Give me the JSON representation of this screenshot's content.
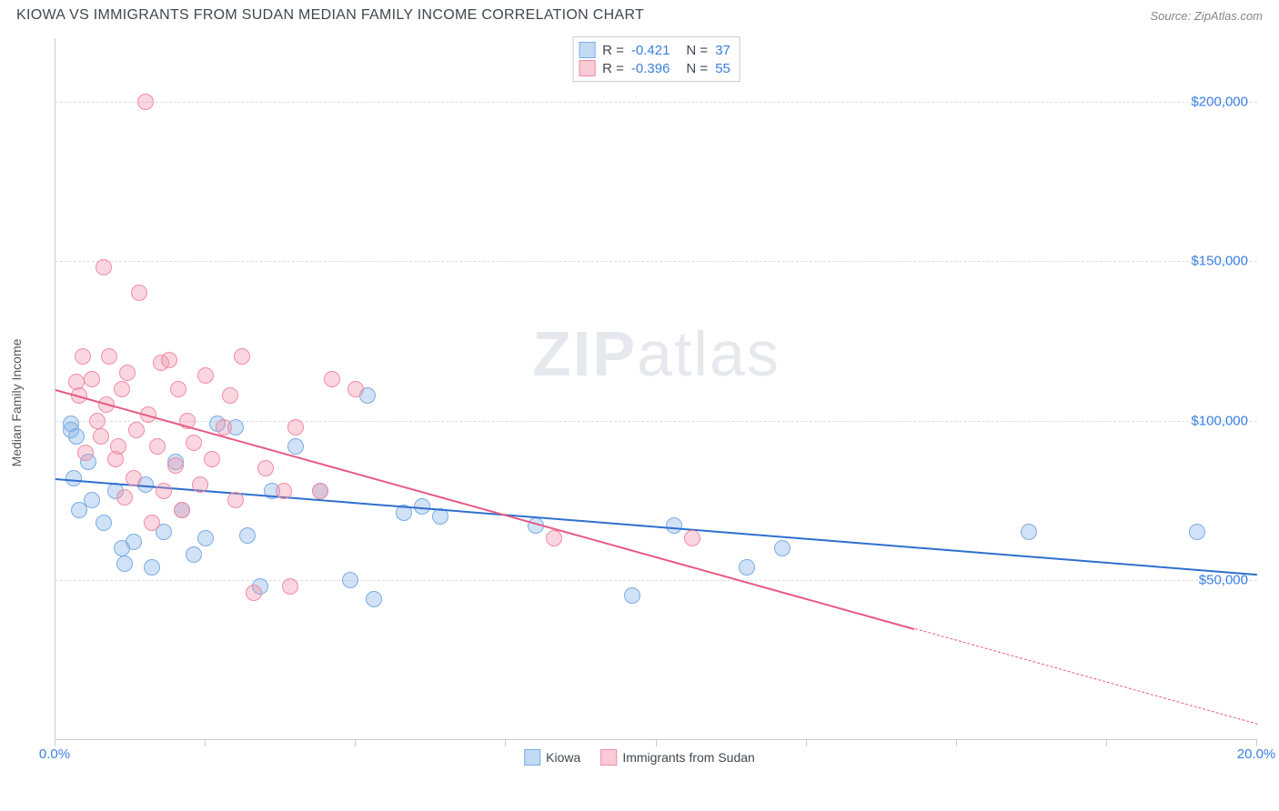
{
  "header": {
    "title": "KIOWA VS IMMIGRANTS FROM SUDAN MEDIAN FAMILY INCOME CORRELATION CHART",
    "source": "Source: ZipAtlas.com"
  },
  "chart": {
    "type": "scatter",
    "ylabel": "Median Family Income",
    "watermark_a": "ZIP",
    "watermark_b": "atlas",
    "xlim": [
      0,
      20
    ],
    "ylim": [
      0,
      220000
    ],
    "x_tick_positions": [
      0,
      2.5,
      5,
      7.5,
      10,
      12.5,
      15,
      17.5,
      20
    ],
    "x_tick_labels": {
      "0": "0.0%",
      "20": "20.0%"
    },
    "y_gridlines": [
      50000,
      100000,
      150000,
      200000
    ],
    "y_tick_labels": {
      "50000": "$50,000",
      "100000": "$100,000",
      "150000": "$150,000",
      "200000": "$200,000"
    },
    "background_color": "#ffffff",
    "grid_color": "#d9dde1",
    "axis_color": "#c9ced3",
    "tick_label_color": "#3a7fe0",
    "marker_radius": 9,
    "series": [
      {
        "name": "Kiowa",
        "fill": "rgba(122,172,230,0.35)",
        "stroke": "#7aace6",
        "line_color": "#2f6fd0",
        "reg": {
          "x0": 0,
          "y0": 82000,
          "x1": 20,
          "y1": 52000,
          "dash_from_x": null
        },
        "points": [
          [
            0.25,
            99000
          ],
          [
            0.25,
            97000
          ],
          [
            0.3,
            82000
          ],
          [
            0.35,
            95000
          ],
          [
            0.4,
            72000
          ],
          [
            0.55,
            87000
          ],
          [
            0.6,
            75000
          ],
          [
            0.8,
            68000
          ],
          [
            1.0,
            78000
          ],
          [
            1.1,
            60000
          ],
          [
            1.15,
            55000
          ],
          [
            1.3,
            62000
          ],
          [
            1.5,
            80000
          ],
          [
            1.6,
            54000
          ],
          [
            1.8,
            65000
          ],
          [
            2.0,
            87000
          ],
          [
            2.1,
            72000
          ],
          [
            2.3,
            58000
          ],
          [
            2.5,
            63000
          ],
          [
            2.7,
            99000
          ],
          [
            3.0,
            98000
          ],
          [
            3.2,
            64000
          ],
          [
            3.4,
            48000
          ],
          [
            3.6,
            78000
          ],
          [
            4.0,
            92000
          ],
          [
            4.4,
            78000
          ],
          [
            4.9,
            50000
          ],
          [
            5.2,
            108000
          ],
          [
            5.3,
            44000
          ],
          [
            5.8,
            71000
          ],
          [
            6.1,
            73000
          ],
          [
            6.4,
            70000
          ],
          [
            8.0,
            67000
          ],
          [
            9.6,
            45000
          ],
          [
            10.3,
            67000
          ],
          [
            11.5,
            54000
          ],
          [
            12.1,
            60000
          ],
          [
            16.2,
            65000
          ],
          [
            19.0,
            65000
          ]
        ]
      },
      {
        "name": "Immigants from Sudan",
        "fill": "rgba(240,140,165,0.35)",
        "stroke": "#f08ca5",
        "line_color": "#e85a82",
        "reg": {
          "x0": 0,
          "y0": 110000,
          "x1": 20,
          "y1": 5000,
          "dash_from_x": 14.3
        },
        "points": [
          [
            0.35,
            112000
          ],
          [
            0.4,
            108000
          ],
          [
            0.45,
            120000
          ],
          [
            0.5,
            90000
          ],
          [
            0.6,
            113000
          ],
          [
            0.7,
            100000
          ],
          [
            0.75,
            95000
          ],
          [
            0.8,
            148000
          ],
          [
            0.85,
            105000
          ],
          [
            0.9,
            120000
          ],
          [
            1.0,
            88000
          ],
          [
            1.05,
            92000
          ],
          [
            1.1,
            110000
          ],
          [
            1.15,
            76000
          ],
          [
            1.2,
            115000
          ],
          [
            1.3,
            82000
          ],
          [
            1.35,
            97000
          ],
          [
            1.4,
            140000
          ],
          [
            1.5,
            200000
          ],
          [
            1.55,
            102000
          ],
          [
            1.6,
            68000
          ],
          [
            1.7,
            92000
          ],
          [
            1.75,
            118000
          ],
          [
            1.8,
            78000
          ],
          [
            1.9,
            119000
          ],
          [
            2.0,
            86000
          ],
          [
            2.05,
            110000
          ],
          [
            2.1,
            72000
          ],
          [
            2.2,
            100000
          ],
          [
            2.3,
            93000
          ],
          [
            2.4,
            80000
          ],
          [
            2.5,
            114000
          ],
          [
            2.6,
            88000
          ],
          [
            2.8,
            98000
          ],
          [
            2.9,
            108000
          ],
          [
            3.0,
            75000
          ],
          [
            3.1,
            120000
          ],
          [
            3.3,
            46000
          ],
          [
            3.5,
            85000
          ],
          [
            3.8,
            78000
          ],
          [
            3.9,
            48000
          ],
          [
            4.0,
            98000
          ],
          [
            4.4,
            78000
          ],
          [
            4.6,
            113000
          ],
          [
            5.0,
            110000
          ],
          [
            8.3,
            63000
          ],
          [
            10.6,
            63000
          ]
        ]
      }
    ],
    "legend_top": [
      {
        "swatch_fill": "rgba(122,172,230,0.45)",
        "swatch_stroke": "#7aace6",
        "r_label": "R = ",
        "r_val": "-0.421",
        "n_label": "N = ",
        "n_val": "37"
      },
      {
        "swatch_fill": "rgba(240,140,165,0.45)",
        "swatch_stroke": "#f08ca5",
        "r_label": "R = ",
        "r_val": "-0.396",
        "n_label": "N = ",
        "n_val": "55"
      }
    ],
    "legend_bottom": [
      {
        "swatch_fill": "rgba(122,172,230,0.45)",
        "swatch_stroke": "#7aace6",
        "label": "Kiowa"
      },
      {
        "swatch_fill": "rgba(240,140,165,0.45)",
        "swatch_stroke": "#f08ca5",
        "label": "Immigrants from Sudan"
      }
    ]
  }
}
